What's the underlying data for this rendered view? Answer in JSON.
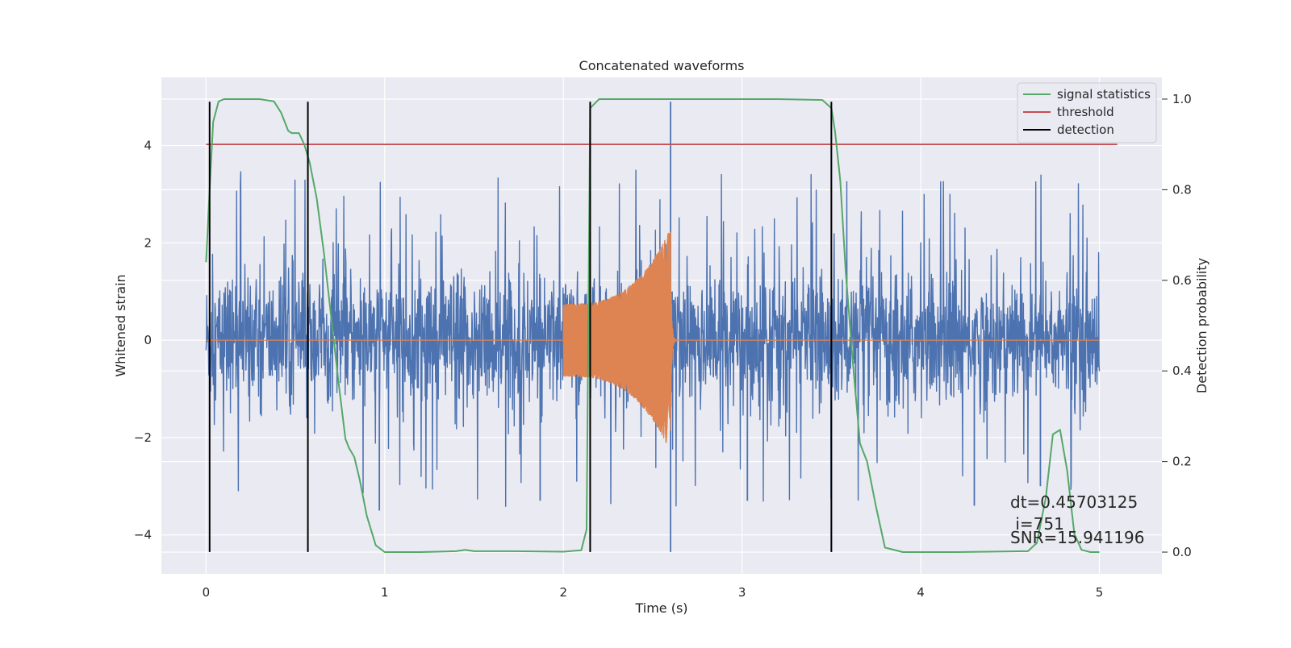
{
  "chart_data": {
    "type": "line",
    "title": "Concatenated waveforms",
    "xlabel": "Time (s)",
    "ylabel": "Whitened strain",
    "y2label": "Detection probability",
    "xlim": [
      -0.25,
      5.35
    ],
    "ylim": [
      -4.8,
      5.4
    ],
    "y2lim": [
      -0.048,
      1.048
    ],
    "x_ticks": [
      0,
      1,
      2,
      3,
      4,
      5
    ],
    "y_ticks": [
      -4,
      -2,
      0,
      2,
      4
    ],
    "y2_ticks": [
      0.0,
      0.2,
      0.4,
      0.6,
      0.8,
      1.0
    ],
    "y2_tick_labels": [
      "0.0",
      "0.2",
      "0.4",
      "0.6",
      "0.8",
      "1.0"
    ],
    "grid": true,
    "legend_position": "top-right",
    "colors": {
      "noise": "#4c72b0",
      "waveform": "#dd8452",
      "signal_statistics": "#55a868",
      "threshold": "#c44e52",
      "detection": "#000000",
      "plot_background": "#eaeaf2",
      "grid": "#ffffff"
    },
    "series": [
      {
        "name": "signal statistics",
        "axis": "right",
        "x": [
          0,
          0.02,
          0.04,
          0.07,
          0.1,
          0.2,
          0.3,
          0.38,
          0.42,
          0.46,
          0.48,
          0.52,
          0.55,
          0.58,
          0.62,
          0.66,
          0.7,
          0.74,
          0.78,
          0.8,
          0.83,
          0.86,
          0.9,
          0.95,
          1.0,
          1.2,
          1.4,
          1.45,
          1.5,
          1.7,
          2.0,
          2.1,
          2.13,
          2.15,
          2.2,
          2.4,
          2.8,
          3.2,
          3.45,
          3.5,
          3.52,
          3.55,
          3.58,
          3.62,
          3.66,
          3.7,
          3.75,
          3.8,
          3.9,
          4.2,
          4.6,
          4.65,
          4.7,
          4.74,
          4.78,
          4.82,
          4.86,
          4.9,
          4.95,
          5.0
        ],
        "values": [
          0.64,
          0.8,
          0.95,
          0.995,
          1.0,
          1.0,
          1.0,
          0.995,
          0.97,
          0.93,
          0.925,
          0.925,
          0.9,
          0.86,
          0.78,
          0.66,
          0.52,
          0.38,
          0.25,
          0.23,
          0.21,
          0.16,
          0.08,
          0.015,
          0.0,
          0.0,
          0.002,
          0.005,
          0.002,
          0.002,
          0.001,
          0.004,
          0.05,
          0.98,
          1.0,
          1.0,
          1.0,
          1.0,
          0.998,
          0.98,
          0.93,
          0.82,
          0.62,
          0.42,
          0.24,
          0.2,
          0.1,
          0.01,
          0.0,
          0.0,
          0.002,
          0.02,
          0.12,
          0.26,
          0.27,
          0.18,
          0.04,
          0.005,
          0.0,
          0.0
        ]
      },
      {
        "name": "threshold",
        "axis": "right",
        "x": [
          0,
          5.1
        ],
        "values": [
          0.9,
          0.9
        ]
      },
      {
        "name": "detection",
        "axis": "left",
        "x": [
          0.02,
          0.57,
          2.15,
          3.5
        ],
        "range": [
          -4.35,
          4.9
        ]
      },
      {
        "name": "",
        "role": "whitened noise",
        "axis": "left",
        "x_range": [
          0,
          5
        ],
        "typical_amplitude": 1.1,
        "peak_amplitude": 3.5,
        "spikes": [
          {
            "x": 2.6,
            "values": [
              4.9,
              -4.35
            ]
          },
          {
            "x": 0.97,
            "values": [
              -3.5
            ]
          },
          {
            "x": 1.87,
            "values": [
              -3.3
            ]
          },
          {
            "x": 3.03,
            "values": [
              -3.3
            ]
          },
          {
            "x": 4.3,
            "values": [
              -3.4
            ]
          },
          {
            "x": 4.67,
            "values": [
              -3.0
            ]
          }
        ]
      },
      {
        "name": "",
        "role": "injected waveform",
        "axis": "left",
        "x_range": [
          2.0,
          2.6
        ],
        "amplitude_start": 0.75,
        "amplitude_peak": 2.3,
        "peak_x": 2.6,
        "ringdown_until": 2.68
      }
    ],
    "annotations": [
      "dt=0.45703125",
      " i=751",
      "SNR=15.941196"
    ]
  }
}
